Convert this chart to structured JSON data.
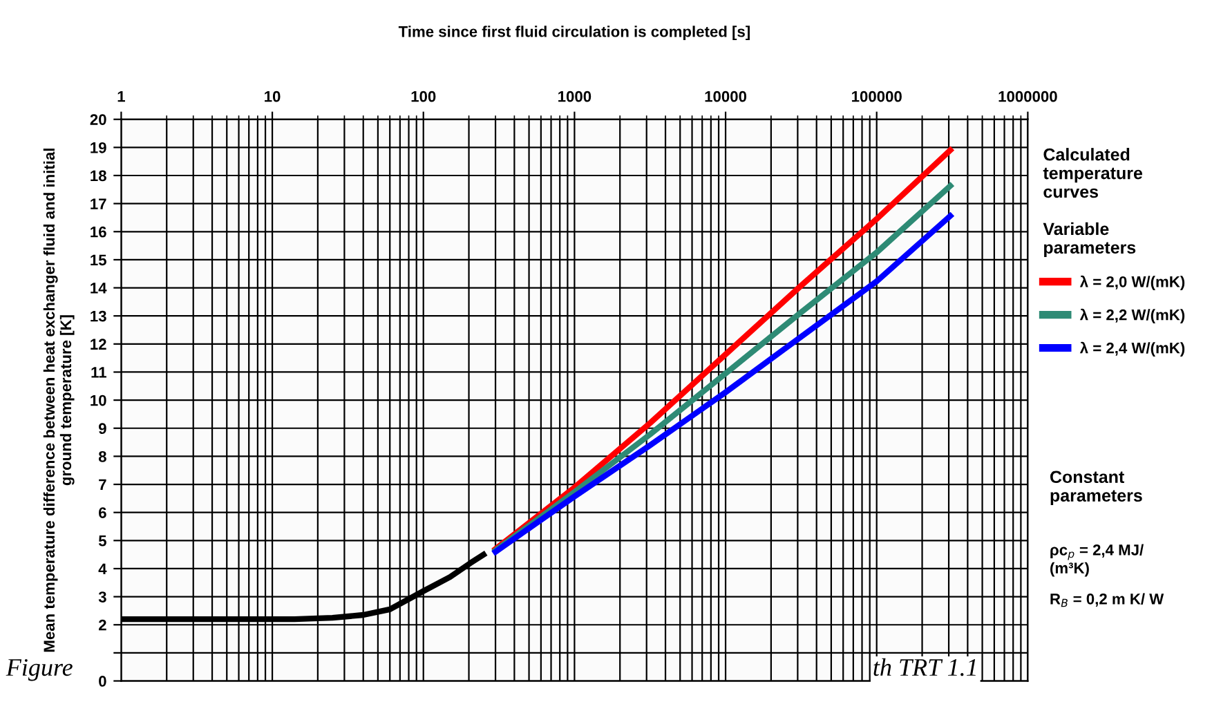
{
  "chart_data": {
    "type": "line",
    "xlabel": "Time since first fluid circulation is completed [s]",
    "ylabel": "Mean temperature difference between heat exchanger fluid and initial\nground temperature [K]",
    "legend_title": "Calculated\ntemperature\ncurves\n\nVariable\nparameters",
    "xlim": [
      1,
      1000000
    ],
    "xticks": [
      1,
      10,
      100,
      1000,
      10000,
      100000,
      1000000
    ],
    "ylim": [
      0,
      20
    ],
    "yticks": [
      0,
      {
        "value": 1,
        "label": null
      },
      2,
      3,
      4,
      5,
      6,
      7,
      8,
      9,
      10,
      11,
      12,
      13,
      14,
      15,
      16,
      17,
      18,
      19,
      20
    ],
    "log": "x",
    "grid": true,
    "legend": "right",
    "marker": "none",
    "line_style": "solid",
    "series": [
      {
        "name": "λ = 2,0 W/(mK)",
        "color": "#ff0000",
        "x": [
          300,
          1000,
          3162,
          10000,
          31623,
          100000,
          307000
        ],
        "values": [
          4.7,
          6.89,
          9.18,
          11.63,
          14.08,
          16.45,
          18.9
        ]
      },
      {
        "name": "λ = 2,2 W/(mK)",
        "color": "#2e8b75",
        "x": [
          300,
          1000,
          3162,
          10000,
          31623,
          100000,
          307000
        ],
        "values": [
          4.65,
          6.73,
          8.78,
          10.95,
          13.13,
          15.26,
          17.63
        ]
      },
      {
        "name": "λ = 2,4 W/(mK)",
        "color": "#0000ff",
        "x": [
          300,
          1000,
          3162,
          10000,
          31623,
          100000,
          307000
        ],
        "values": [
          4.6,
          6.57,
          8.39,
          10.28,
          12.26,
          14.23,
          16.56
        ]
      },
      {
        "color": "#000000",
        "x": [
          1,
          5,
          14,
          25,
          40,
          60,
          100,
          150,
          205,
          250
        ],
        "values": [
          2.2,
          2.2,
          2.2,
          2.25,
          2.35,
          2.55,
          3.2,
          3.7,
          4.2,
          4.5
        ]
      }
    ],
    "annotations": [
      "Constant\nparameters",
      "ρc$_{p}$ = 2,4 MJ/\n(m³K)",
      "R$_{B}$ = 0,2 m K/ W",
      "Figure",
      "th TRT 1.1"
    ]
  }
}
